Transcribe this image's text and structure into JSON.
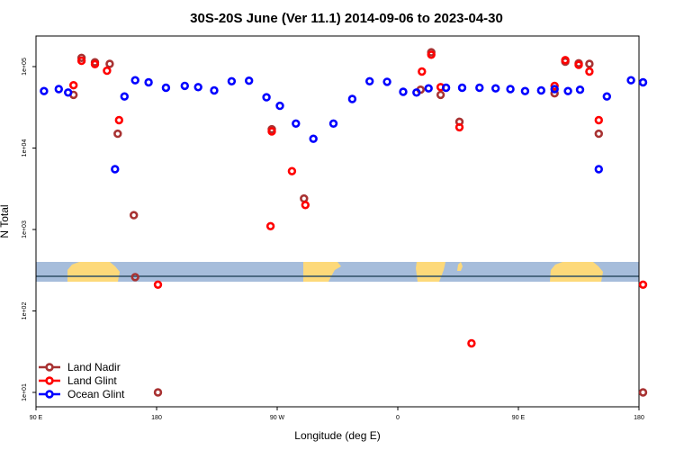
{
  "chart_data": {
    "type": "scatter",
    "title": "30S-20S June (Ver 11.1)   2014-09-06 to 2023-04-30",
    "xlabel": "Longitude (deg E)",
    "ylabel": "N Total",
    "x_domain": [
      -90,
      360
    ],
    "x_ticks": [
      {
        "value": -90,
        "label": "90 E"
      },
      {
        "value": 0,
        "label": "180"
      },
      {
        "value": 90,
        "label": "90 W"
      },
      {
        "value": 180,
        "label": "0"
      },
      {
        "value": 270,
        "label": "90 E"
      },
      {
        "value": 360,
        "label": "180"
      }
    ],
    "y_scale": "log",
    "y_ticks": [
      {
        "value": 10,
        "label": "1e+01"
      },
      {
        "value": 100,
        "label": "1e+02"
      },
      {
        "value": 1000,
        "label": "1e+03"
      },
      {
        "value": 10000,
        "label": "1e+04"
      },
      {
        "value": 100000,
        "label": "1e+05"
      }
    ],
    "ylim": [
      7,
      270000
    ],
    "legend_position": "bottom-left",
    "background_map": "world land/ocean strip",
    "colors": {
      "ocean": "#a6bddb",
      "land": "#fdd97a",
      "line": "#2f4f66"
    },
    "series": [
      {
        "name": "Land Nadir",
        "color": "#a83232",
        "points": [
          [
            -62,
            45000
          ],
          [
            -56,
            128000
          ],
          [
            -46,
            113000
          ],
          [
            -35,
            108000
          ],
          [
            -29,
            15000
          ],
          [
            -17,
            1500
          ],
          [
            -16,
            260
          ],
          [
            1,
            10
          ],
          [
            86,
            17000
          ],
          [
            110,
            2400
          ],
          [
            197,
            52000
          ],
          [
            205,
            150000
          ],
          [
            212,
            45000
          ],
          [
            226,
            21000
          ],
          [
            297,
            47000
          ],
          [
            305,
            115000
          ],
          [
            315,
            110000
          ],
          [
            323,
            108000
          ],
          [
            330,
            15000
          ],
          [
            363,
            10
          ]
        ]
      },
      {
        "name": "Land Glint",
        "color": "#ff0000",
        "points": [
          [
            -62,
            59000
          ],
          [
            -56,
            118000
          ],
          [
            -46,
            107000
          ],
          [
            -37,
            89000
          ],
          [
            -28,
            22000
          ],
          [
            1,
            210
          ],
          [
            85,
            1100
          ],
          [
            86,
            16000
          ],
          [
            101,
            5200
          ],
          [
            111,
            2000
          ],
          [
            198,
            87000
          ],
          [
            205,
            140000
          ],
          [
            212,
            56000
          ],
          [
            226,
            18000
          ],
          [
            235,
            40
          ],
          [
            297,
            58000
          ],
          [
            305,
            120000
          ],
          [
            315,
            105000
          ],
          [
            323,
            87000
          ],
          [
            330,
            22000
          ],
          [
            363,
            210
          ]
        ]
      },
      {
        "name": "Ocean Glint",
        "color": "#0000ff",
        "points": [
          [
            -84,
            50000
          ],
          [
            -73,
            53000
          ],
          [
            -66,
            48000
          ],
          [
            -31,
            5500
          ],
          [
            -24,
            43000
          ],
          [
            -16,
            68000
          ],
          [
            -6,
            64000
          ],
          [
            7,
            55000
          ],
          [
            21,
            58000
          ],
          [
            31,
            56000
          ],
          [
            43,
            51000
          ],
          [
            56,
            66000
          ],
          [
            69,
            67000
          ],
          [
            82,
            42000
          ],
          [
            92,
            33000
          ],
          [
            104,
            20000
          ],
          [
            117,
            13000
          ],
          [
            132,
            20000
          ],
          [
            146,
            40000
          ],
          [
            159,
            66000
          ],
          [
            172,
            65000
          ],
          [
            184,
            49000
          ],
          [
            194,
            48000
          ],
          [
            203,
            54000
          ],
          [
            216,
            55000
          ],
          [
            228,
            55000
          ],
          [
            241,
            55000
          ],
          [
            253,
            54000
          ],
          [
            264,
            53000
          ],
          [
            275,
            50000
          ],
          [
            287,
            51000
          ],
          [
            297,
            53000
          ],
          [
            307,
            50000
          ],
          [
            316,
            52000
          ],
          [
            330,
            5500
          ],
          [
            336,
            43000
          ],
          [
            354,
            68000
          ],
          [
            363,
            64000
          ]
        ]
      }
    ]
  }
}
